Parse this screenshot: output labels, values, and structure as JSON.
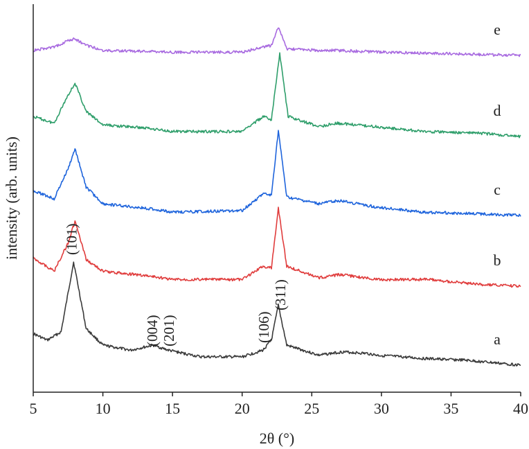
{
  "chart_data": {
    "type": "line",
    "xlabel": "2θ (°)",
    "ylabel": "intensity (arb. units)",
    "xlim": [
      5,
      40
    ],
    "xticks": [
      "5",
      "10",
      "15",
      "20",
      "25",
      "30",
      "35",
      "40"
    ],
    "yticks_shown": false,
    "grid": false,
    "legend": "none",
    "series": [
      {
        "name": "a",
        "color": "#3a3a3a",
        "values": [
          [
            5.0,
            0.19
          ],
          [
            6.0,
            0.15
          ],
          [
            7.0,
            0.2
          ],
          [
            7.9,
            0.62
          ],
          [
            8.8,
            0.22
          ],
          [
            10.0,
            0.12
          ],
          [
            12.0,
            0.09
          ],
          [
            13.6,
            0.12
          ],
          [
            14.7,
            0.09
          ],
          [
            17.0,
            0.05
          ],
          [
            20.0,
            0.05
          ],
          [
            21.5,
            0.09
          ],
          [
            22.1,
            0.15
          ],
          [
            22.6,
            0.36
          ],
          [
            23.2,
            0.12
          ],
          [
            25.5,
            0.06
          ],
          [
            27.2,
            0.08
          ],
          [
            29.0,
            0.07
          ],
          [
            29.7,
            0.06
          ],
          [
            33.0,
            0.04
          ],
          [
            36.0,
            0.03
          ],
          [
            40.0,
            0.0
          ]
        ]
      },
      {
        "name": "b",
        "color": "#e03c3c",
        "values": [
          [
            5.0,
            0.17
          ],
          [
            6.5,
            0.09
          ],
          [
            7.5,
            0.26
          ],
          [
            8.0,
            0.39
          ],
          [
            8.8,
            0.16
          ],
          [
            10.0,
            0.09
          ],
          [
            13.4,
            0.06
          ],
          [
            15.0,
            0.04
          ],
          [
            20.0,
            0.04
          ],
          [
            21.5,
            0.12
          ],
          [
            22.1,
            0.11
          ],
          [
            22.6,
            0.47
          ],
          [
            23.2,
            0.12
          ],
          [
            25.5,
            0.05
          ],
          [
            27.0,
            0.07
          ],
          [
            29.7,
            0.04
          ],
          [
            33.5,
            0.04
          ],
          [
            37.0,
            0.01
          ],
          [
            40.0,
            0.0
          ]
        ]
      },
      {
        "name": "c",
        "color": "#1e64dc",
        "values": [
          [
            5.0,
            0.15
          ],
          [
            6.5,
            0.1
          ],
          [
            7.5,
            0.28
          ],
          [
            8.0,
            0.4
          ],
          [
            8.8,
            0.17
          ],
          [
            10.0,
            0.07
          ],
          [
            13.4,
            0.04
          ],
          [
            15.0,
            0.02
          ],
          [
            20.0,
            0.03
          ],
          [
            21.5,
            0.13
          ],
          [
            22.1,
            0.12
          ],
          [
            22.6,
            0.51
          ],
          [
            23.2,
            0.11
          ],
          [
            25.5,
            0.07
          ],
          [
            26.9,
            0.09
          ],
          [
            29.7,
            0.05
          ],
          [
            33.0,
            0.02
          ],
          [
            37.0,
            0.01
          ],
          [
            40.0,
            0.0
          ]
        ]
      },
      {
        "name": "d",
        "color": "#2e9e6a",
        "values": [
          [
            5.0,
            0.12
          ],
          [
            6.5,
            0.08
          ],
          [
            7.5,
            0.25
          ],
          [
            8.0,
            0.32
          ],
          [
            8.8,
            0.15
          ],
          [
            10.0,
            0.07
          ],
          [
            13.3,
            0.05
          ],
          [
            15.0,
            0.03
          ],
          [
            20.0,
            0.03
          ],
          [
            21.5,
            0.12
          ],
          [
            22.1,
            0.1
          ],
          [
            22.7,
            0.5
          ],
          [
            23.3,
            0.12
          ],
          [
            25.5,
            0.06
          ],
          [
            26.8,
            0.08
          ],
          [
            29.5,
            0.06
          ],
          [
            33.0,
            0.03
          ],
          [
            37.0,
            0.02
          ],
          [
            40.0,
            0.0
          ]
        ]
      },
      {
        "name": "e",
        "color": "#a86ae0",
        "values": [
          [
            5.0,
            0.03
          ],
          [
            6.5,
            0.05
          ],
          [
            7.5,
            0.09
          ],
          [
            8.0,
            0.1
          ],
          [
            8.8,
            0.06
          ],
          [
            10.0,
            0.03
          ],
          [
            15.0,
            0.02
          ],
          [
            20.0,
            0.02
          ],
          [
            21.5,
            0.05
          ],
          [
            22.1,
            0.06
          ],
          [
            22.6,
            0.17
          ],
          [
            23.2,
            0.04
          ],
          [
            25.5,
            0.03
          ],
          [
            26.8,
            0.03
          ],
          [
            30.0,
            0.02
          ],
          [
            35.0,
            0.01
          ],
          [
            40.0,
            0.0
          ]
        ]
      }
    ],
    "annotations": [
      {
        "text": "(101)",
        "x": 7.8
      },
      {
        "text": "(004)",
        "x": 13.6
      },
      {
        "text": "(201)",
        "x": 14.8
      },
      {
        "text": "(106)",
        "x": 21.6
      },
      {
        "text": "(311)",
        "x": 22.8
      }
    ]
  }
}
